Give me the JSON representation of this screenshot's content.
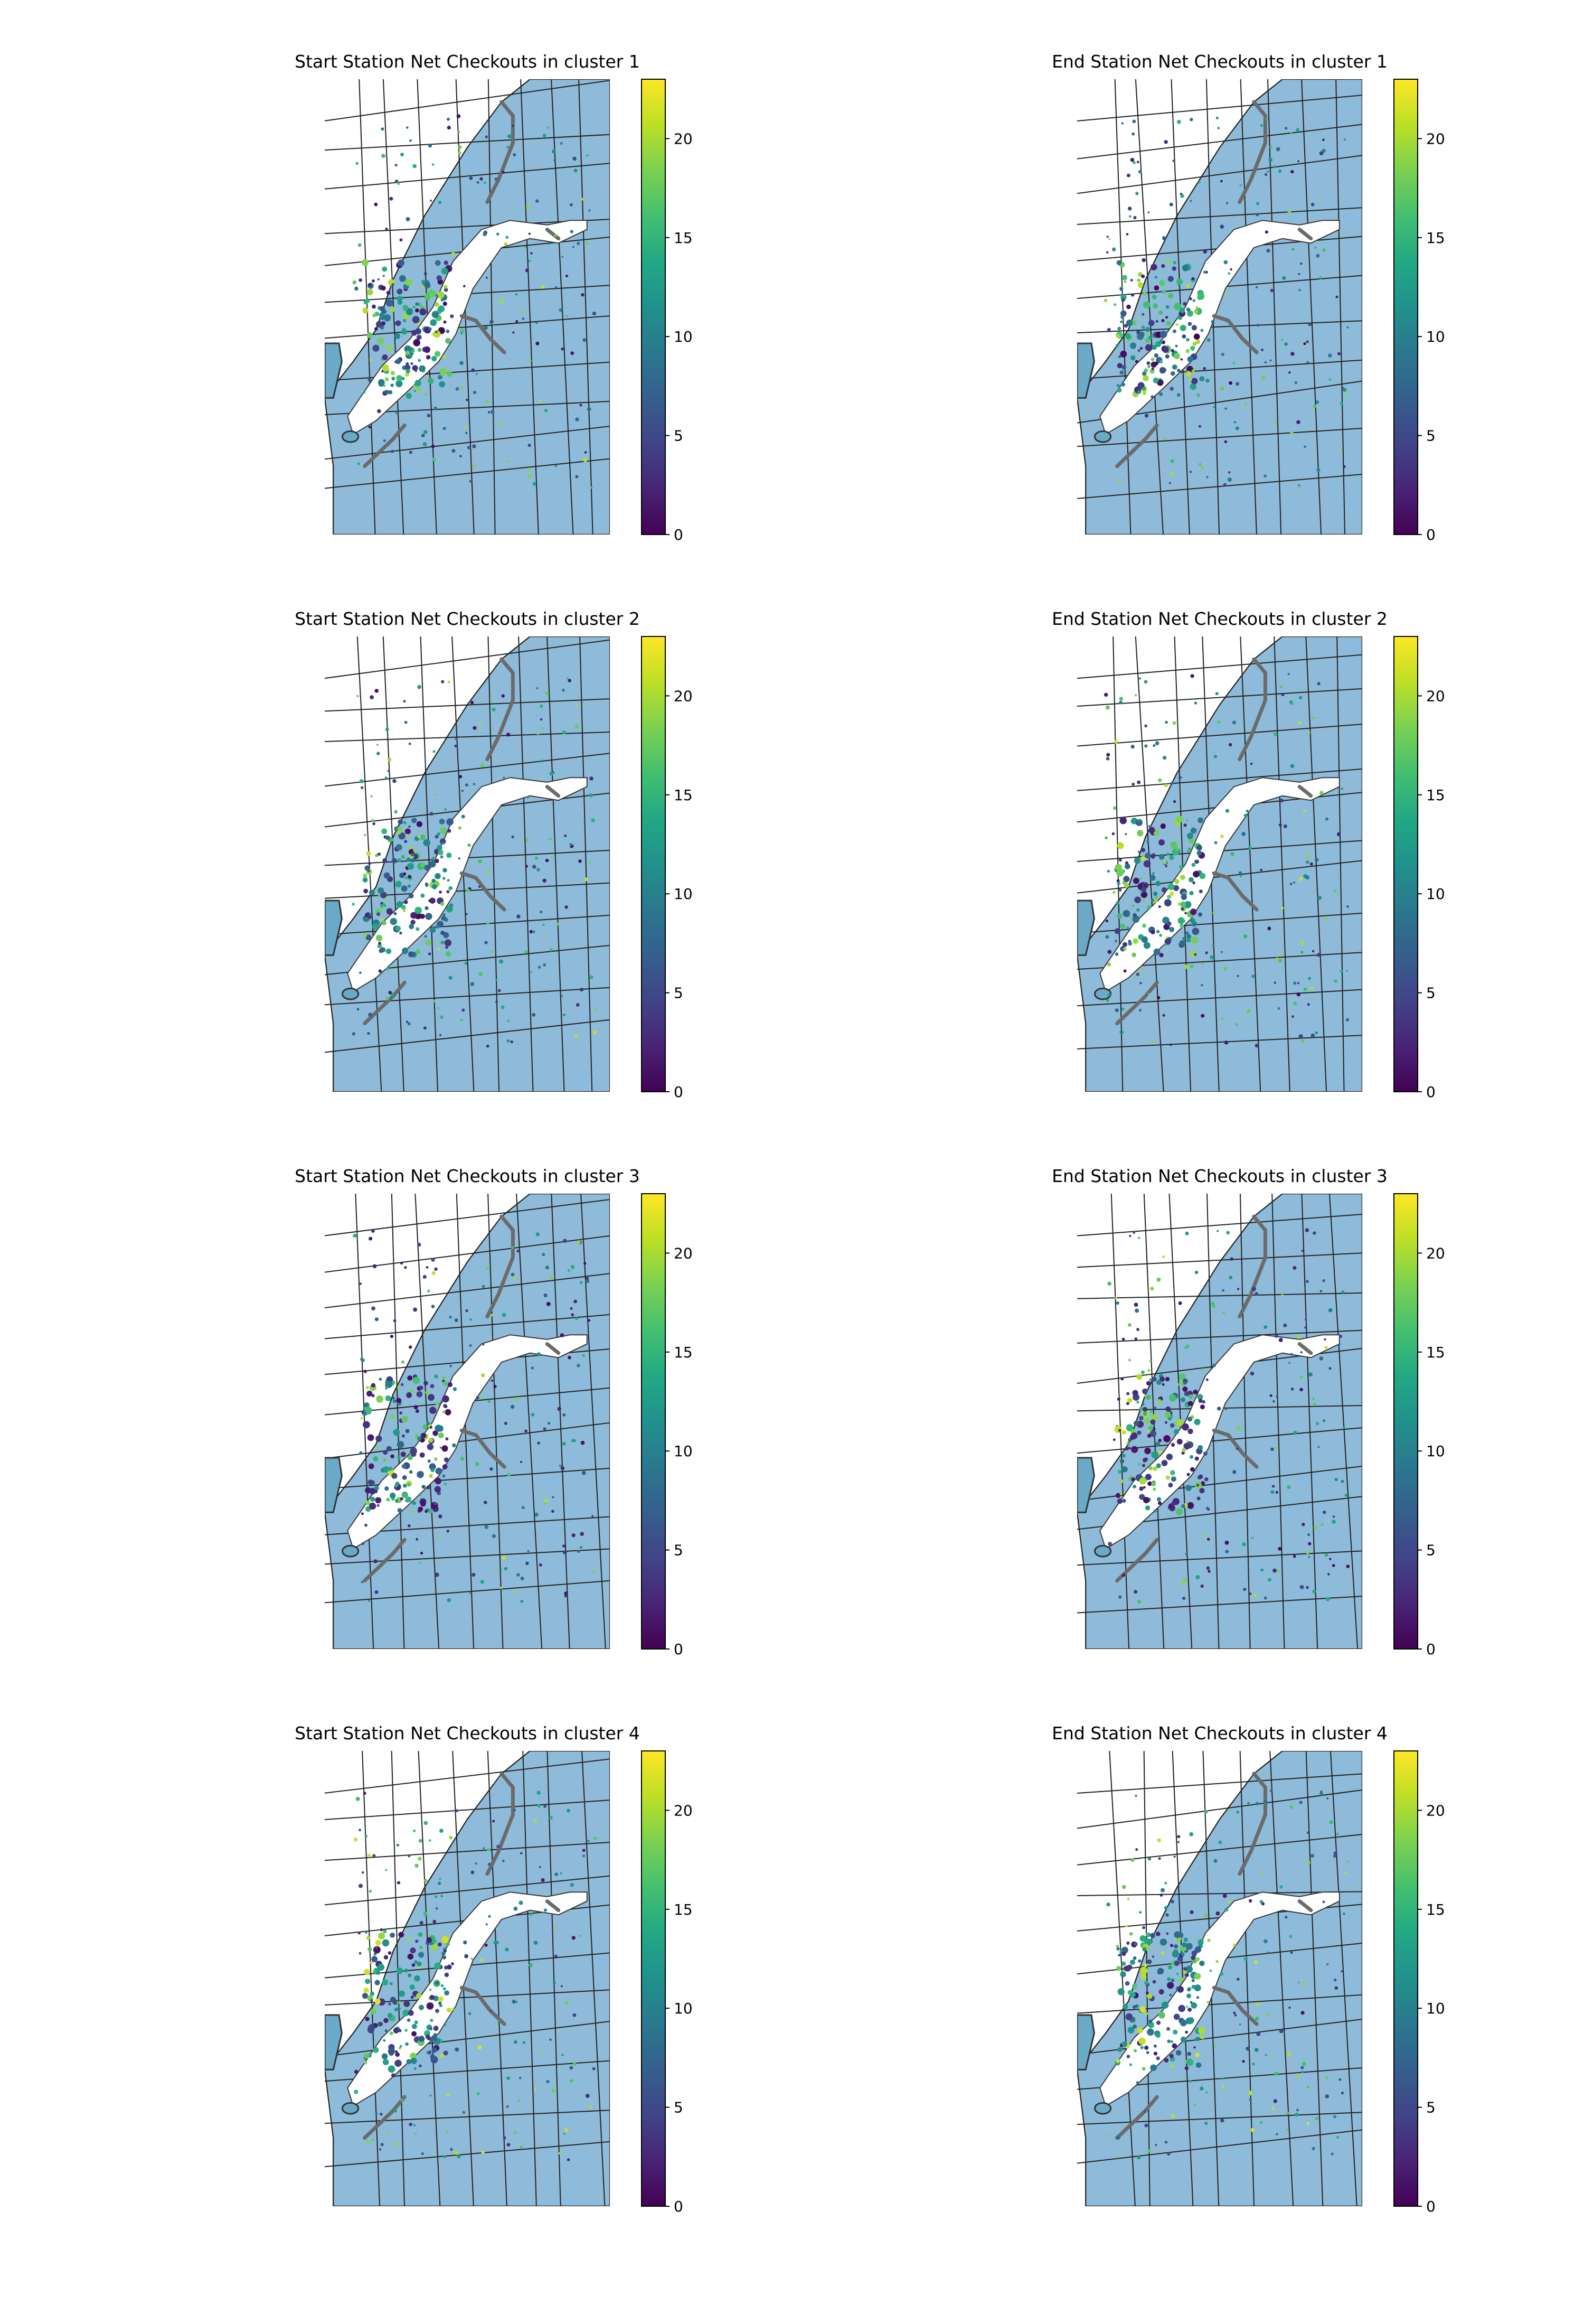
{
  "chart_data": {
    "type": "scatter",
    "layout": "4 rows x 2 columns of station maps",
    "colormap": "viridis",
    "colorbar": {
      "range": [
        0,
        23
      ],
      "ticks": [
        0,
        5,
        10,
        15,
        20
      ],
      "tick_labels": [
        "0",
        "5",
        "10",
        "15",
        "20"
      ]
    },
    "panels": [
      {
        "title": "Start Station Net Checkouts in cluster 1",
        "station": "start",
        "cluster": 1
      },
      {
        "title": "End Station Net Checkouts in cluster 1",
        "station": "end",
        "cluster": 1
      },
      {
        "title": "Start Station Net Checkouts in cluster 2",
        "station": "start",
        "cluster": 2
      },
      {
        "title": "End Station Net Checkouts in cluster 2",
        "station": "end",
        "cluster": 2
      },
      {
        "title": "Start Station Net Checkouts in cluster 3",
        "station": "start",
        "cluster": 3
      },
      {
        "title": "End Station Net Checkouts in cluster 3",
        "station": "end",
        "cluster": 3
      },
      {
        "title": "Start Station Net Checkouts in cluster 4",
        "station": "start",
        "cluster": 4
      },
      {
        "title": "End Station Net Checkouts in cluster 4",
        "station": "end",
        "cluster": 4
      }
    ],
    "grid": false,
    "axes": "hidden"
  }
}
